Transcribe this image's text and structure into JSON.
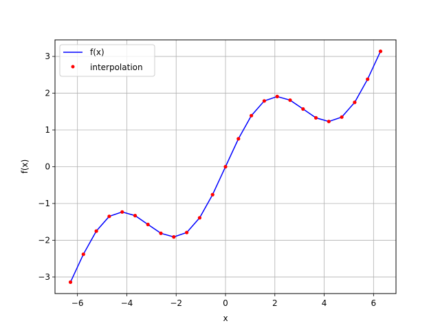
{
  "chart_data": {
    "type": "line",
    "title": "",
    "xlabel": "x",
    "ylabel": "f(x)",
    "xlim": [
      -6.91,
      6.91
    ],
    "ylim": [
      -3.45,
      3.45
    ],
    "xticks": [
      -6,
      -4,
      -2,
      0,
      2,
      4,
      6
    ],
    "yticks": [
      -3,
      -2,
      -1,
      0,
      1,
      2,
      3
    ],
    "grid": true,
    "legend_position": "upper-left",
    "series": [
      {
        "name": "f(x)",
        "kind": "line",
        "color": "#0000ff",
        "x": [
          -6.283,
          -5.76,
          -5.236,
          -4.712,
          -4.189,
          -3.665,
          -3.142,
          -2.618,
          -2.094,
          -1.571,
          -1.047,
          -0.524,
          0.0,
          0.524,
          1.047,
          1.571,
          2.094,
          2.618,
          3.142,
          3.665,
          4.189,
          4.712,
          5.236,
          5.76,
          6.283
        ],
        "y": [
          -3.14,
          -2.38,
          -1.75,
          -1.35,
          -1.23,
          -1.33,
          -1.57,
          -1.81,
          -1.91,
          -1.79,
          -1.39,
          -0.76,
          0.0,
          0.76,
          1.39,
          1.79,
          1.91,
          1.81,
          1.57,
          1.33,
          1.23,
          1.35,
          1.75,
          2.38,
          3.14
        ]
      },
      {
        "name": "interpolation",
        "kind": "scatter",
        "color": "#ff0000",
        "x": [
          -6.283,
          -5.76,
          -5.236,
          -4.712,
          -4.189,
          -3.665,
          -3.142,
          -2.618,
          -2.094,
          -1.571,
          -1.047,
          -0.524,
          0.0,
          0.524,
          1.047,
          1.571,
          2.094,
          2.618,
          3.142,
          3.665,
          4.189,
          4.712,
          5.236,
          5.76,
          6.283
        ],
        "y": [
          -3.14,
          -2.38,
          -1.75,
          -1.35,
          -1.23,
          -1.33,
          -1.57,
          -1.81,
          -1.91,
          -1.79,
          -1.39,
          -0.76,
          0.0,
          0.76,
          1.39,
          1.79,
          1.91,
          1.81,
          1.57,
          1.33,
          1.23,
          1.35,
          1.75,
          2.38,
          3.14
        ]
      }
    ]
  }
}
